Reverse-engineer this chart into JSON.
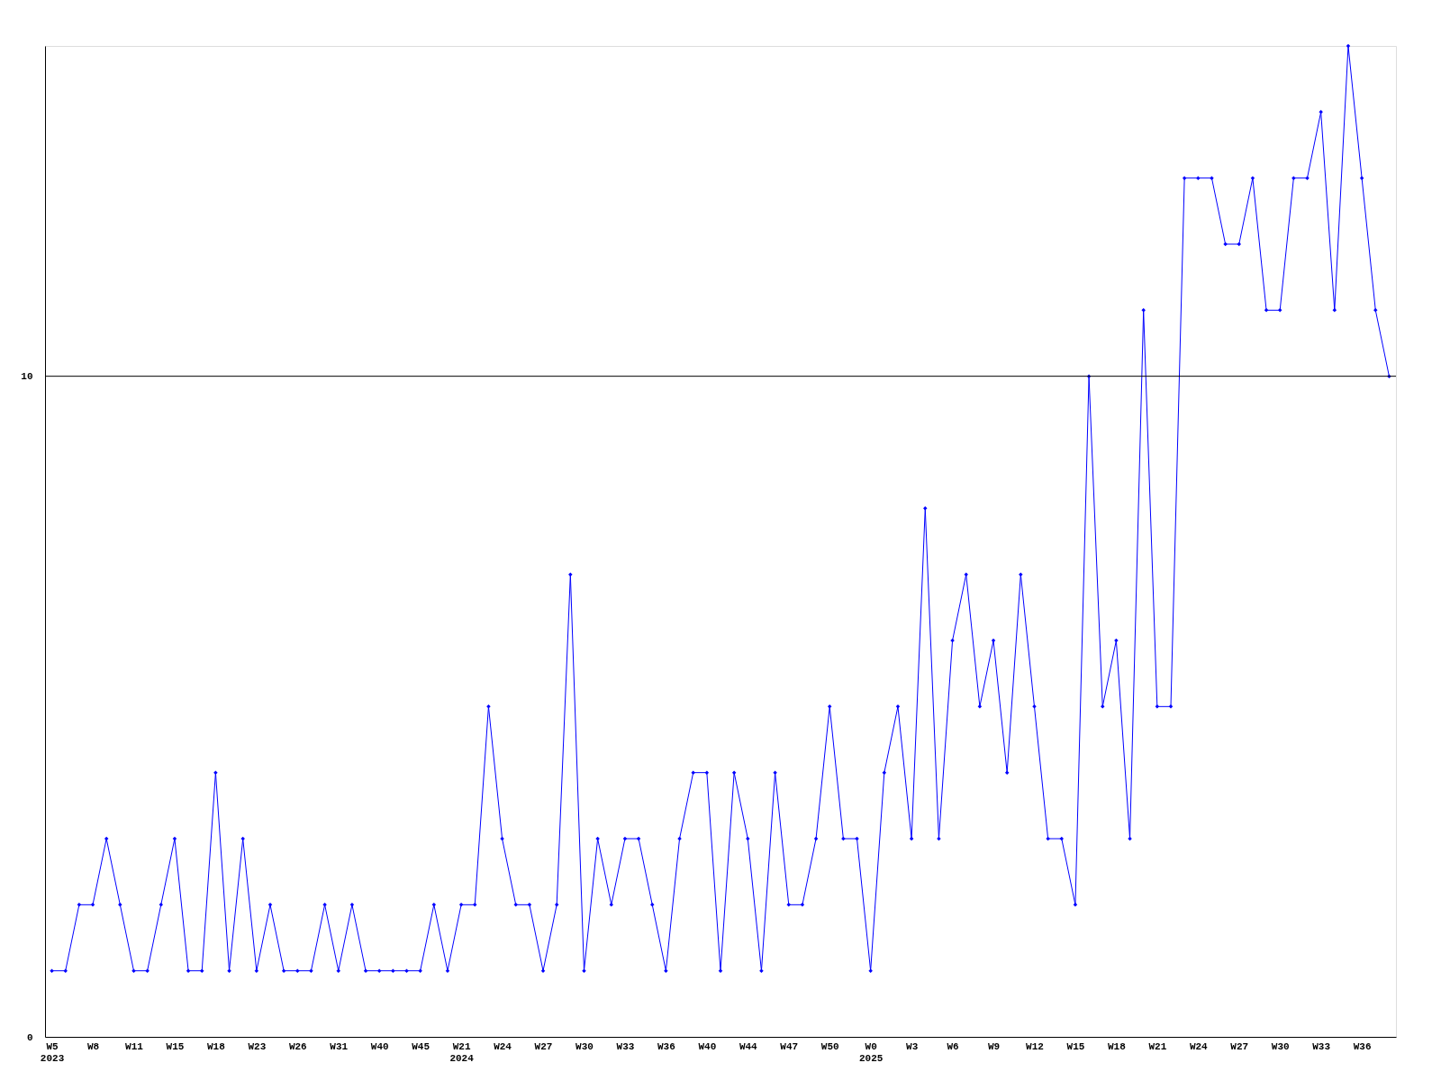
{
  "chart_data": {
    "type": "line",
    "categories": [
      "W5\n2023",
      null,
      null,
      "W8",
      null,
      null,
      "W11",
      null,
      null,
      "W15",
      null,
      null,
      "W18",
      null,
      null,
      "W23",
      null,
      null,
      "W26",
      null,
      null,
      "W31",
      null,
      null,
      "W40",
      null,
      null,
      "W45",
      null,
      null,
      "W21\n2024",
      null,
      null,
      "W24",
      null,
      null,
      "W27",
      null,
      null,
      "W30",
      null,
      null,
      "W33",
      null,
      null,
      "W36",
      null,
      null,
      "W40",
      null,
      null,
      "W44",
      null,
      null,
      "W47",
      null,
      null,
      "W50",
      null,
      null,
      "W0\n2025",
      null,
      null,
      "W3",
      null,
      null,
      "W6",
      null,
      null,
      "W9",
      null,
      null,
      "W12",
      null,
      null,
      "W15",
      null,
      null,
      "W18",
      null,
      null,
      "W21",
      null,
      null,
      "W24",
      null,
      null,
      "W27",
      null,
      null,
      "W30",
      null,
      null,
      "W33",
      null,
      null,
      "W36",
      null,
      null
    ],
    "series": [
      {
        "color": "#0000ff",
        "values": [
          1,
          1,
          2,
          2,
          3,
          2,
          1,
          1,
          2,
          3,
          1,
          1,
          4,
          1,
          3,
          1,
          2,
          1,
          1,
          1,
          2,
          1,
          2,
          1,
          1,
          1,
          1,
          1,
          2,
          1,
          2,
          2,
          5,
          3,
          2,
          2,
          1,
          2,
          7,
          1,
          3,
          2,
          3,
          3,
          2,
          1,
          3,
          4,
          4,
          1,
          4,
          3,
          1,
          4,
          2,
          2,
          3,
          5,
          3,
          3,
          1,
          4,
          5,
          3,
          8,
          3,
          6,
          7,
          5,
          6,
          4,
          7,
          5,
          3,
          3,
          2,
          10,
          5,
          6,
          3,
          11,
          5,
          5,
          13,
          13,
          13,
          12,
          12,
          13,
          11,
          11,
          13,
          13,
          14,
          11,
          15,
          13,
          11,
          10
        ]
      }
    ],
    "ylim": [
      0,
      15
    ],
    "yticks": [
      0,
      10
    ],
    "ref_lines": [
      {
        "axis": "y",
        "value": 10,
        "color": "#000000"
      }
    ],
    "marker": "diamond",
    "line_style": "solid",
    "grid": false
  }
}
